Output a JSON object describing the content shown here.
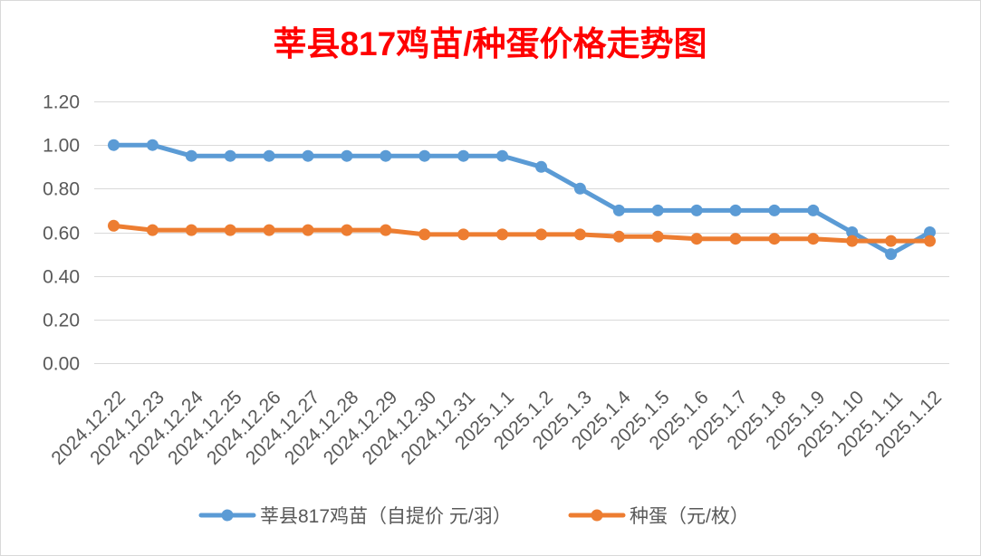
{
  "chart_data": {
    "type": "line",
    "title": "莘县817鸡苗/种蛋价格走势图",
    "categories": [
      "2024.12.22",
      "2024.12.23",
      "2024.12.24",
      "2024.12.25",
      "2024.12.26",
      "2024.12.27",
      "2024.12.28",
      "2024.12.29",
      "2024.12.30",
      "2024.12.31",
      "2025.1.1",
      "2025.1.2",
      "2025.1.3",
      "2025.1.4",
      "2025.1.5",
      "2025.1.6",
      "2025.1.7",
      "2025.1.8",
      "2025.1.9",
      "2025.1.10",
      "2025.1.11",
      "2025.1.12"
    ],
    "ylim": [
      0,
      1.2
    ],
    "y_tick_labels": [
      "0.00",
      "0.20",
      "0.40",
      "0.60",
      "0.80",
      "1.00",
      "1.20"
    ],
    "grid": true,
    "legend_position": "bottom",
    "series": [
      {
        "name": "莘县817鸡苗（自提价 元/羽）",
        "color": "#5B9BD5",
        "values": [
          1.0,
          1.0,
          0.95,
          0.95,
          0.95,
          0.95,
          0.95,
          0.95,
          0.95,
          0.95,
          0.95,
          0.9,
          0.8,
          0.7,
          0.7,
          0.7,
          0.7,
          0.7,
          0.7,
          0.6,
          0.5,
          0.6
        ]
      },
      {
        "name": "种蛋（元/枚）",
        "color": "#ED7D31",
        "values": [
          0.63,
          0.61,
          0.61,
          0.61,
          0.61,
          0.61,
          0.61,
          0.61,
          0.59,
          0.59,
          0.59,
          0.59,
          0.59,
          0.58,
          0.58,
          0.57,
          0.57,
          0.57,
          0.57,
          0.56,
          0.56,
          0.56
        ]
      }
    ]
  },
  "colors": {
    "title": "#FF0000",
    "gridline": "#D9D9D9",
    "tick_text": "#595959",
    "legend_text": "#595959",
    "border": "#D9D9D9"
  }
}
